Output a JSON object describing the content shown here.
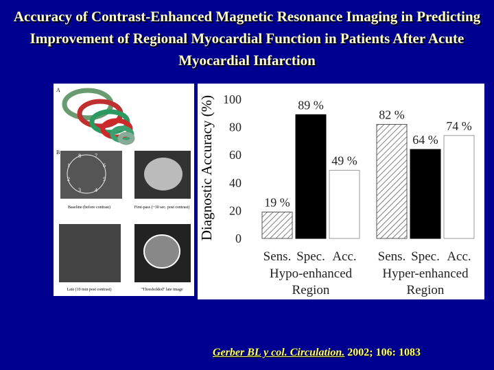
{
  "chart_data": {
    "type": "grouped-bar",
    "title": "Accuracy of Contrast-Enhanced Magnetic Resonance Imaging in Predicting Improvement of Regional Myocardial Function in Patients After Acute Myocardial Infarction",
    "y_label": "Diagnostic Accuracy (%)",
    "categories": [
      "Hypo-enhanced Region",
      "Hyper-enhanced Region"
    ],
    "series": [
      {
        "name": "Sens.",
        "color": "#555555",
        "hatch": true,
        "values": [
          19,
          82
        ],
        "value_labels": [
          "19 %",
          "82 %"
        ]
      },
      {
        "name": "Spec.",
        "color": "#000000",
        "hatch": false,
        "values": [
          89,
          64
        ],
        "value_labels": [
          "89 %",
          "64 %"
        ]
      },
      {
        "name": "Acc.",
        "color": "#ffffff",
        "hatch": false,
        "values": [
          49,
          74
        ],
        "value_labels": [
          "49 %",
          "74 %"
        ]
      }
    ],
    "ylim": [
      0,
      100
    ],
    "yticks": [
      0,
      20,
      40,
      60,
      80,
      100
    ],
    "grid": false
  },
  "figure_panel": {
    "panel_a": "A",
    "panel_b": "B",
    "segments": [
      "8",
      "7",
      "1",
      "6",
      "2",
      "5",
      "3",
      "4"
    ],
    "captions": [
      "Baseline (before contrast)",
      "First-pass (~30 sec. post contrast)",
      "Late (10 min post contrast)",
      "\"Thresholded\" late image"
    ]
  },
  "citation": {
    "source": "Gerber  BL y col. Circulation.",
    "ref": "2002; 106: 1083"
  }
}
